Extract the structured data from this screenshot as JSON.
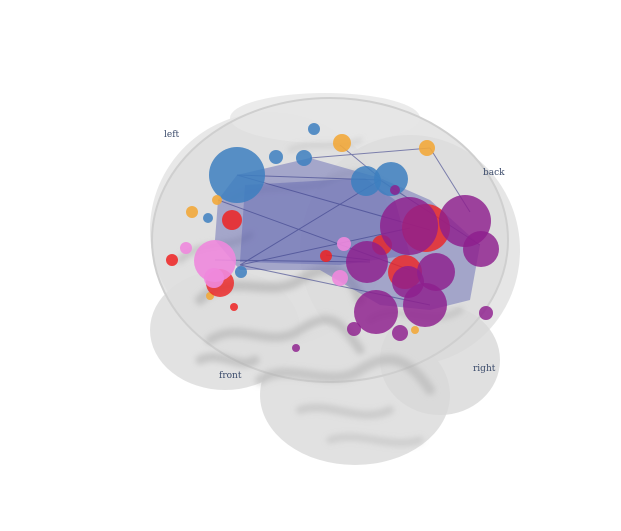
{
  "orientation_labels": {
    "left": "left",
    "back": "back",
    "front": "front",
    "right": "right"
  },
  "colors": {
    "blue": "#3d7fbf",
    "orange": "#f2a93b",
    "red": "#ee2222",
    "pink": "#ee88dd",
    "purple": "#8e1f8e",
    "network_fill": "#5a5fb0",
    "network_edge": "#3a3f8a",
    "brain_fill": "#dcdcdc",
    "brain_fold": "#a8a8a8"
  }
}
